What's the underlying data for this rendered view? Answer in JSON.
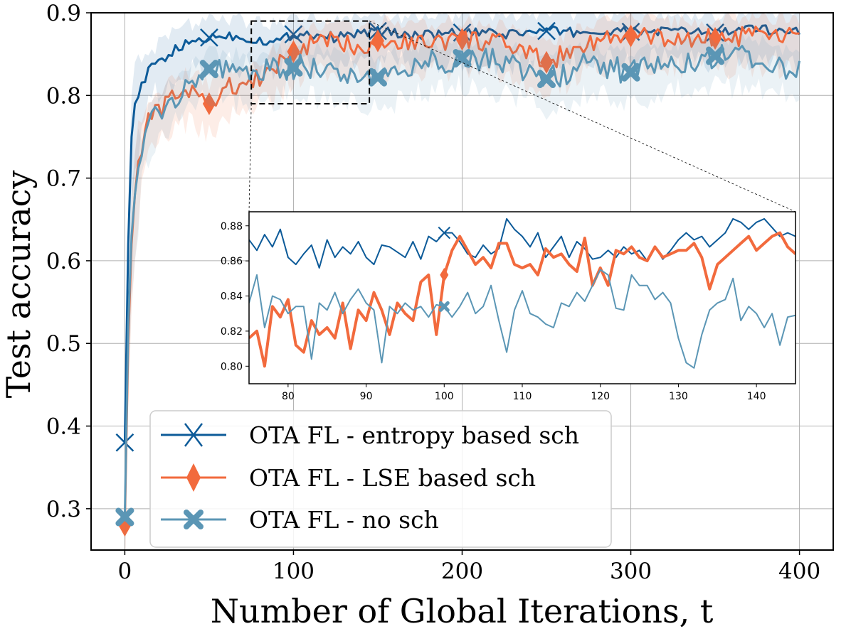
{
  "chart_data": {
    "type": "line",
    "title": "",
    "xlabel": "Number of Global Iterations, t",
    "ylabel": "Test accuracy",
    "xlim": [
      -20,
      420
    ],
    "ylim": [
      0.25,
      0.9
    ],
    "xticks": [
      0,
      100,
      200,
      300,
      400
    ],
    "xtick_labels": [
      "0",
      "100",
      "200",
      "300",
      "400"
    ],
    "yticks": [
      0.3,
      0.4,
      0.5,
      0.6,
      0.7,
      0.8,
      0.9
    ],
    "ytick_labels": [
      "0.3",
      "0.4",
      "0.5",
      "0.6",
      "0.7",
      "0.8",
      "0.9"
    ],
    "grid": true,
    "legend_position": "lower-left",
    "shaded_band": "variability band around each series",
    "series": [
      {
        "name": "OTA FL - entropy based sch",
        "color": "#0d5b99",
        "marker": "x",
        "marker_x": [
          0,
          50,
          100,
          150,
          200,
          250,
          300,
          350
        ],
        "x": [
          0,
          2,
          4,
          6,
          8,
          10,
          14,
          20,
          30,
          40,
          50,
          60,
          75,
          90,
          100,
          110,
          125,
          140,
          150,
          175,
          200,
          225,
          250,
          275,
          300,
          325,
          350,
          375,
          400
        ],
        "values": [
          0.38,
          0.62,
          0.75,
          0.79,
          0.8,
          0.81,
          0.83,
          0.84,
          0.855,
          0.865,
          0.87,
          0.873,
          0.868,
          0.865,
          0.874,
          0.875,
          0.87,
          0.876,
          0.878,
          0.872,
          0.876,
          0.874,
          0.878,
          0.876,
          0.877,
          0.878,
          0.876,
          0.88,
          0.878
        ]
      },
      {
        "name": "OTA FL - LSE based sch",
        "color": "#f26a3d",
        "marker": "diamond",
        "marker_x": [
          0,
          50,
          100,
          150,
          200,
          250,
          300,
          350
        ],
        "x": [
          0,
          2,
          4,
          6,
          8,
          10,
          14,
          20,
          30,
          40,
          50,
          60,
          75,
          90,
          100,
          110,
          125,
          140,
          150,
          175,
          200,
          225,
          250,
          275,
          300,
          325,
          350,
          375,
          400
        ],
        "values": [
          0.28,
          0.5,
          0.62,
          0.68,
          0.72,
          0.74,
          0.77,
          0.78,
          0.8,
          0.805,
          0.79,
          0.81,
          0.815,
          0.835,
          0.853,
          0.862,
          0.865,
          0.86,
          0.866,
          0.864,
          0.868,
          0.862,
          0.84,
          0.865,
          0.872,
          0.868,
          0.869,
          0.872,
          0.87
        ]
      },
      {
        "name": "OTA FL - no sch",
        "color": "#5b96b5",
        "marker": "X",
        "marker_x": [
          0,
          50,
          100,
          150,
          200,
          250,
          300,
          350
        ],
        "x": [
          0,
          2,
          4,
          6,
          8,
          10,
          14,
          20,
          30,
          40,
          50,
          60,
          75,
          90,
          100,
          110,
          125,
          140,
          150,
          175,
          200,
          225,
          250,
          275,
          300,
          325,
          350,
          375,
          400
        ],
        "values": [
          0.29,
          0.52,
          0.63,
          0.68,
          0.71,
          0.73,
          0.76,
          0.78,
          0.8,
          0.82,
          0.832,
          0.83,
          0.825,
          0.832,
          0.834,
          0.835,
          0.83,
          0.825,
          0.822,
          0.838,
          0.845,
          0.84,
          0.82,
          0.838,
          0.828,
          0.84,
          0.848,
          0.845,
          0.83
        ]
      }
    ],
    "inset": {
      "xlim": [
        75,
        145
      ],
      "ylim": [
        0.79,
        0.888
      ],
      "xticks": [
        80,
        90,
        100,
        110,
        120,
        130,
        140
      ],
      "xtick_labels": [
        "80",
        "90",
        "100",
        "110",
        "120",
        "130",
        "140"
      ],
      "yticks": [
        0.8,
        0.82,
        0.84,
        0.86,
        0.88
      ],
      "ytick_labels": [
        "0.80",
        "0.82",
        "0.84",
        "0.86",
        "0.88"
      ],
      "zoom_region": {
        "x": [
          75,
          145
        ],
        "y": [
          0.79,
          0.89
        ]
      },
      "series": [
        {
          "name": "OTA FL - entropy based sch",
          "marker_x": [
            100
          ],
          "x": [
            75,
            76,
            77,
            78,
            79,
            80,
            81,
            82,
            83,
            84,
            85,
            86,
            87,
            88,
            89,
            90,
            91,
            92,
            93,
            94,
            95,
            96,
            97,
            98,
            99,
            100,
            101,
            102,
            103,
            104,
            105,
            106,
            107,
            108,
            109,
            110,
            111,
            112,
            113,
            114,
            115,
            116,
            117,
            118,
            119,
            120,
            121,
            122,
            123,
            124,
            125,
            126,
            127,
            128,
            129,
            130,
            131,
            132,
            133,
            134,
            135,
            136,
            137,
            138,
            139,
            140,
            141,
            142,
            143,
            144,
            145
          ],
          "values": [
            0.872,
            0.866,
            0.875,
            0.868,
            0.878,
            0.862,
            0.858,
            0.864,
            0.869,
            0.856,
            0.872,
            0.862,
            0.868,
            0.864,
            0.871,
            0.862,
            0.858,
            0.869,
            0.868,
            0.865,
            0.862,
            0.871,
            0.861,
            0.874,
            0.871,
            0.876,
            0.876,
            0.871,
            0.864,
            0.862,
            0.869,
            0.864,
            0.867,
            0.884,
            0.878,
            0.874,
            0.868,
            0.876,
            0.862,
            0.868,
            0.874,
            0.862,
            0.871,
            0.867,
            0.861,
            0.862,
            0.866,
            0.862,
            0.868,
            0.864,
            0.866,
            0.86,
            0.868,
            0.861,
            0.866,
            0.872,
            0.876,
            0.872,
            0.874,
            0.868,
            0.872,
            0.876,
            0.884,
            0.882,
            0.878,
            0.882,
            0.884,
            0.879,
            0.874,
            0.876,
            0.874
          ]
        },
        {
          "name": "OTA FL - LSE based sch",
          "marker_x": [
            100
          ],
          "x": [
            75,
            76,
            77,
            78,
            79,
            80,
            81,
            82,
            83,
            84,
            85,
            86,
            87,
            88,
            89,
            90,
            91,
            92,
            93,
            94,
            95,
            96,
            97,
            98,
            99,
            100,
            101,
            102,
            103,
            104,
            105,
            106,
            107,
            108,
            109,
            110,
            111,
            112,
            113,
            114,
            115,
            116,
            117,
            118,
            119,
            120,
            121,
            122,
            123,
            124,
            125,
            126,
            127,
            128,
            129,
            130,
            131,
            132,
            133,
            134,
            135,
            136,
            137,
            138,
            139,
            140,
            141,
            142,
            143,
            144,
            145
          ],
          "values": [
            0.816,
            0.82,
            0.8,
            0.834,
            0.828,
            0.838,
            0.812,
            0.808,
            0.826,
            0.818,
            0.822,
            0.816,
            0.836,
            0.81,
            0.832,
            0.826,
            0.842,
            0.832,
            0.818,
            0.836,
            0.83,
            0.826,
            0.848,
            0.852,
            0.818,
            0.852,
            0.866,
            0.874,
            0.866,
            0.858,
            0.862,
            0.856,
            0.87,
            0.87,
            0.858,
            0.856,
            0.858,
            0.852,
            0.867,
            0.862,
            0.864,
            0.858,
            0.854,
            0.873,
            0.846,
            0.856,
            0.846,
            0.866,
            0.864,
            0.868,
            0.862,
            0.86,
            0.868,
            0.862,
            0.864,
            0.866,
            0.866,
            0.87,
            0.862,
            0.844,
            0.858,
            0.862,
            0.866,
            0.87,
            0.874,
            0.866,
            0.87,
            0.874,
            0.876,
            0.868,
            0.864
          ]
        },
        {
          "name": "OTA FL - no sch",
          "marker_x": [
            100
          ],
          "x": [
            75,
            76,
            77,
            78,
            79,
            80,
            81,
            82,
            83,
            84,
            85,
            86,
            87,
            88,
            89,
            90,
            91,
            92,
            93,
            94,
            95,
            96,
            97,
            98,
            99,
            100,
            101,
            102,
            103,
            104,
            105,
            106,
            107,
            108,
            109,
            110,
            111,
            112,
            113,
            114,
            115,
            116,
            117,
            118,
            119,
            120,
            121,
            122,
            123,
            124,
            125,
            126,
            127,
            128,
            129,
            130,
            131,
            132,
            133,
            134,
            135,
            136,
            137,
            138,
            139,
            140,
            141,
            142,
            143,
            144,
            145
          ],
          "values": [
            0.836,
            0.852,
            0.822,
            0.84,
            0.838,
            0.83,
            0.834,
            0.834,
            0.804,
            0.836,
            0.832,
            0.842,
            0.83,
            0.838,
            0.844,
            0.836,
            0.832,
            0.802,
            0.834,
            0.83,
            0.836,
            0.832,
            0.834,
            0.828,
            0.835,
            0.834,
            0.828,
            0.834,
            0.842,
            0.83,
            0.834,
            0.846,
            0.826,
            0.808,
            0.832,
            0.843,
            0.83,
            0.828,
            0.824,
            0.822,
            0.836,
            0.834,
            0.842,
            0.837,
            0.846,
            0.855,
            0.852,
            0.833,
            0.832,
            0.852,
            0.846,
            0.846,
            0.838,
            0.842,
            0.836,
            0.816,
            0.802,
            0.799,
            0.818,
            0.832,
            0.836,
            0.838,
            0.85,
            0.826,
            0.834,
            0.83,
            0.822,
            0.83,
            0.812,
            0.828,
            0.829
          ]
        }
      ]
    }
  }
}
